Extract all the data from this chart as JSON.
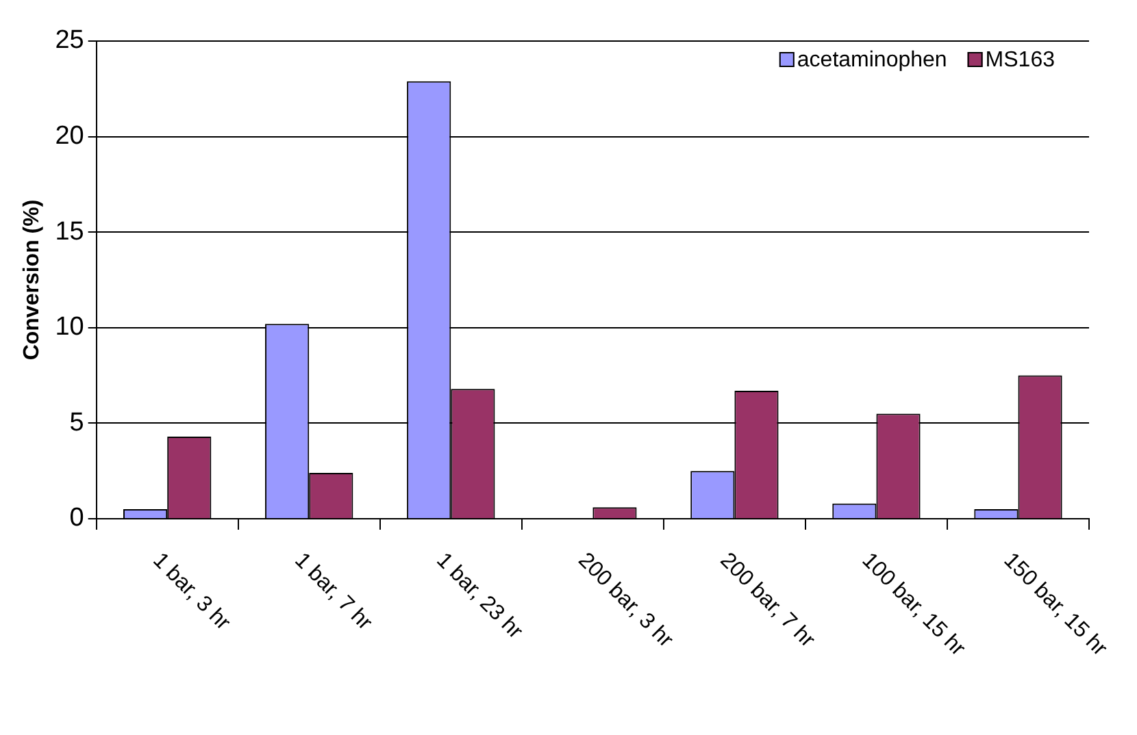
{
  "chart_data": {
    "type": "bar",
    "ylabel": "Conversion (%)",
    "categories": [
      "1 bar, 3 hr",
      "1 bar, 7 hr",
      "1 bar, 23 hr",
      "200 bar, 3 hr",
      "200 bar, 7 hr",
      "100 bar, 15 hr",
      "150 bar, 15 hr"
    ],
    "series": [
      {
        "name": "acetaminophen",
        "color": "#9999ff",
        "values": [
          0.5,
          10.2,
          22.9,
          0,
          2.5,
          0.8,
          0.5
        ]
      },
      {
        "name": "MS163",
        "color": "#993366",
        "values": [
          4.3,
          2.4,
          6.8,
          0.6,
          6.7,
          5.5,
          7.5
        ]
      }
    ],
    "ylim": [
      0,
      25
    ],
    "yticks": [
      0,
      5,
      10,
      15,
      20,
      25
    ],
    "grid": "y",
    "legend": "top right"
  }
}
